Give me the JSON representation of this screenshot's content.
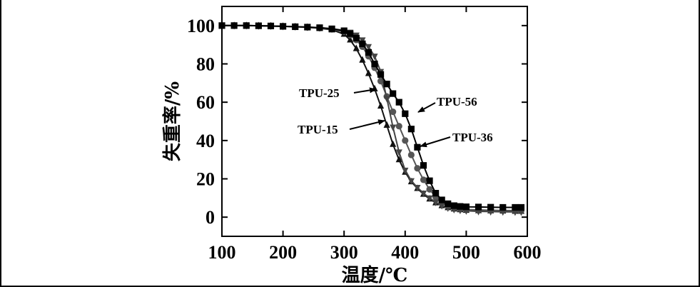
{
  "chart_data": {
    "type": "line",
    "xlabel": "温度/℃",
    "ylabel": "失重率/%",
    "xlim": [
      100,
      600
    ],
    "ylim": [
      -10,
      110
    ],
    "x_ticks": [
      100,
      200,
      300,
      400,
      500,
      600
    ],
    "y_ticks": [
      0,
      20,
      40,
      60,
      80,
      100
    ],
    "grid": false,
    "legend": "none",
    "annotations": [
      "TPU-25",
      "TPU-15",
      "TPU-56",
      "TPU-36"
    ],
    "x": [
      100,
      120,
      140,
      160,
      180,
      200,
      220,
      240,
      260,
      280,
      300,
      310,
      320,
      330,
      340,
      350,
      360,
      370,
      380,
      390,
      400,
      410,
      420,
      430,
      440,
      450,
      460,
      470,
      480,
      490,
      500,
      520,
      540,
      560,
      580,
      590
    ],
    "series": [
      {
        "name": "TPU-15",
        "marker": "triangle-up",
        "color": "#111111",
        "values": [
          100,
          100,
          100,
          99.9,
          99.8,
          99.6,
          99.4,
          99.1,
          98.6,
          97.8,
          95.5,
          92.5,
          88.0,
          82.0,
          75.0,
          67.0,
          58.0,
          48.0,
          38.0,
          30.0,
          23.5,
          18.5,
          15.0,
          12.0,
          9.5,
          7.5,
          6.0,
          5.0,
          4.3,
          3.9,
          3.6,
          3.4,
          3.3,
          3.2,
          3.1,
          3.1
        ]
      },
      {
        "name": "TPU-25",
        "marker": "circle",
        "color": "#555555",
        "values": [
          100,
          100,
          100,
          99.9,
          99.8,
          99.6,
          99.4,
          99.1,
          98.7,
          98.0,
          96.8,
          95.0,
          92.5,
          89.0,
          84.0,
          78.0,
          71.0,
          63.0,
          55.0,
          47.5,
          40.0,
          32.5,
          25.5,
          19.5,
          14.5,
          10.5,
          7.5,
          5.8,
          4.8,
          4.3,
          4.0,
          3.8,
          3.6,
          3.5,
          3.4,
          3.4
        ]
      },
      {
        "name": "TPU-36",
        "marker": "triangle-down",
        "color": "#444444",
        "values": [
          100,
          100,
          100,
          99.9,
          99.8,
          99.6,
          99.4,
          99.2,
          98.9,
          98.4,
          97.5,
          96.5,
          95.0,
          92.5,
          89.0,
          84.0,
          76.0,
          62.0,
          47.0,
          34.0,
          24.5,
          19.0,
          15.5,
          12.5,
          10.0,
          7.8,
          6.0,
          4.8,
          4.0,
          3.6,
          3.3,
          3.0,
          2.9,
          2.8,
          2.7,
          2.7
        ]
      },
      {
        "name": "TPU-56",
        "marker": "square",
        "color": "#000000",
        "values": [
          100,
          100,
          100,
          99.9,
          99.8,
          99.6,
          99.4,
          99.2,
          98.9,
          98.3,
          97.3,
          95.8,
          93.5,
          90.5,
          86.0,
          80.0,
          74.5,
          69.5,
          64.5,
          60.0,
          54.0,
          46.0,
          36.5,
          27.0,
          19.0,
          12.5,
          9.0,
          7.0,
          6.0,
          5.6,
          5.4,
          5.3,
          5.2,
          5.1,
          5.1,
          5.1
        ]
      }
    ]
  }
}
